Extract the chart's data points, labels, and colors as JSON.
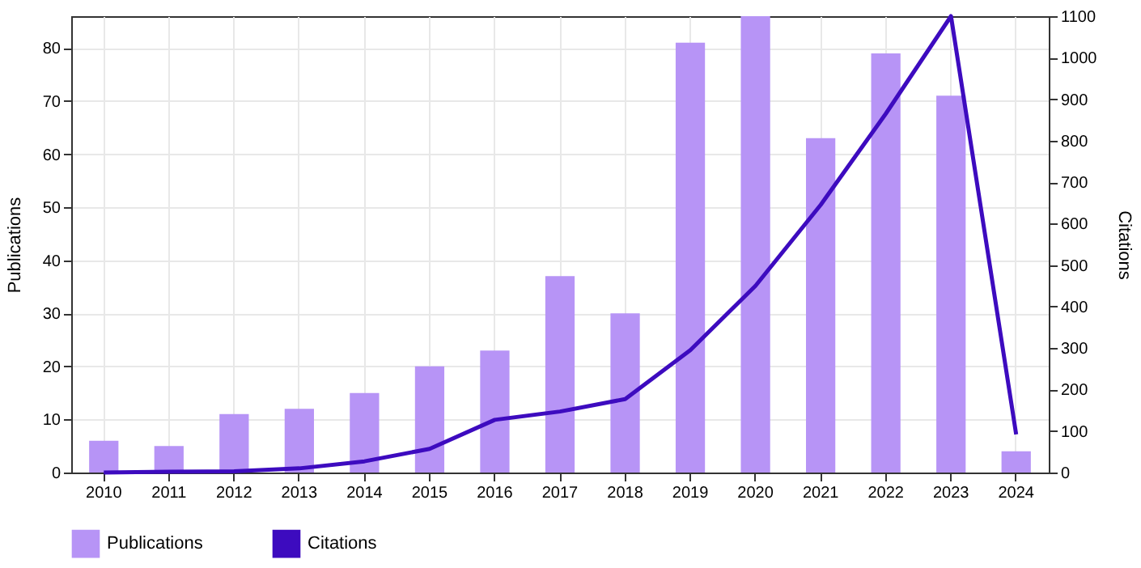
{
  "chart_data": {
    "type": "bar",
    "xlabel": null,
    "ylabel": "Publications",
    "y2label": "Citations",
    "categories": [
      "2010",
      "2011",
      "2012",
      "2013",
      "2014",
      "2015",
      "2016",
      "2017",
      "2018",
      "2019",
      "2020",
      "2021",
      "2022",
      "2023",
      "2024"
    ],
    "series": [
      {
        "name": "Publications",
        "color": "#b794f6",
        "values": [
          6,
          5,
          11,
          12,
          15,
          20,
          23,
          37,
          30,
          81,
          86,
          63,
          79,
          71,
          4
        ]
      },
      {
        "name": "Citations",
        "type": "line",
        "axis": "y2",
        "color": "#3d0bbf",
        "values": [
          0,
          2,
          3,
          10,
          27,
          57,
          127,
          147,
          177,
          295,
          450,
          645,
          865,
          1100,
          92
        ]
      }
    ],
    "ylim": [
      0,
      86
    ],
    "yticks": [
      0,
      10,
      20,
      30,
      40,
      50,
      60,
      70,
      80
    ],
    "y2lim": [
      0,
      1100
    ],
    "y2ticks": [
      0,
      100,
      200,
      300,
      400,
      500,
      600,
      700,
      800,
      900,
      1000,
      1100
    ],
    "grid": true,
    "legend": "bottom",
    "marker": "none",
    "line_style": "solid"
  }
}
